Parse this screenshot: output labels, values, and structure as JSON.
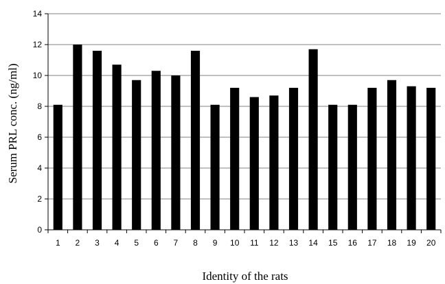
{
  "chart_data": {
    "type": "bar",
    "categories": [
      "1",
      "2",
      "3",
      "4",
      "5",
      "6",
      "7",
      "8",
      "9",
      "10",
      "11",
      "12",
      "13",
      "14",
      "15",
      "16",
      "17",
      "18",
      "19",
      "20"
    ],
    "values": [
      8.1,
      12.0,
      11.6,
      10.7,
      9.7,
      10.3,
      10.0,
      11.6,
      8.1,
      9.2,
      8.6,
      8.7,
      9.2,
      11.7,
      8.1,
      8.1,
      9.2,
      9.7,
      9.3,
      9.2
    ],
    "xlabel": "Identity of the rats",
    "ylabel": "Serum PRL conc. (ng/ml)",
    "ylim": [
      0,
      14
    ],
    "yticks": [
      0,
      2,
      4,
      6,
      8,
      10,
      12,
      14
    ],
    "grid": true,
    "bar_color": "#000000",
    "grid_color": "#808080"
  }
}
